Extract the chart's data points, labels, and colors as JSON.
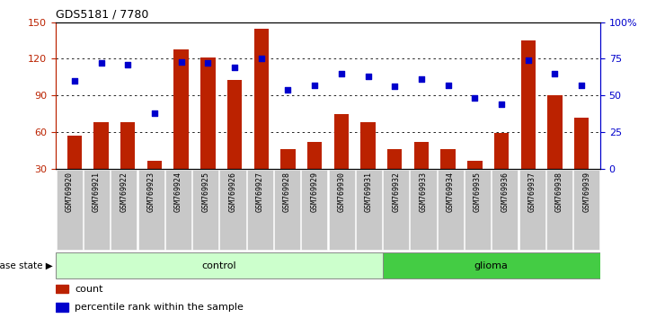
{
  "title": "GDS5181 / 7780",
  "samples": [
    "GSM769920",
    "GSM769921",
    "GSM769922",
    "GSM769923",
    "GSM769924",
    "GSM769925",
    "GSM769926",
    "GSM769927",
    "GSM769928",
    "GSM769929",
    "GSM769930",
    "GSM769931",
    "GSM769932",
    "GSM769933",
    "GSM769934",
    "GSM769935",
    "GSM769936",
    "GSM769937",
    "GSM769938",
    "GSM769939"
  ],
  "bar_values": [
    57,
    68,
    68,
    36,
    128,
    121,
    103,
    145,
    46,
    52,
    75,
    68,
    46,
    52,
    46,
    36,
    59,
    135,
    90,
    72
  ],
  "dot_pct": [
    60,
    72,
    71,
    38,
    73,
    72,
    69,
    75,
    54,
    57,
    65,
    63,
    56,
    61,
    57,
    48,
    44,
    74,
    65,
    57
  ],
  "control_count": 12,
  "glioma_count": 8,
  "ylim_left": [
    30,
    150
  ],
  "ylim_right": [
    0,
    100
  ],
  "yticks_left": [
    30,
    60,
    90,
    120,
    150
  ],
  "yticks_right": [
    0,
    25,
    50,
    75,
    100
  ],
  "ytick_labels_right": [
    "0",
    "25",
    "50",
    "75",
    "100%"
  ],
  "bar_color": "#bb2200",
  "dot_color": "#0000cc",
  "bg_xticklabels": "#c8c8c8",
  "control_bg": "#ccffcc",
  "glioma_bg": "#44cc44",
  "legend_count_label": "count",
  "legend_pct_label": "percentile rank within the sample",
  "disease_state_label": "disease state",
  "control_label": "control",
  "glioma_label": "glioma"
}
